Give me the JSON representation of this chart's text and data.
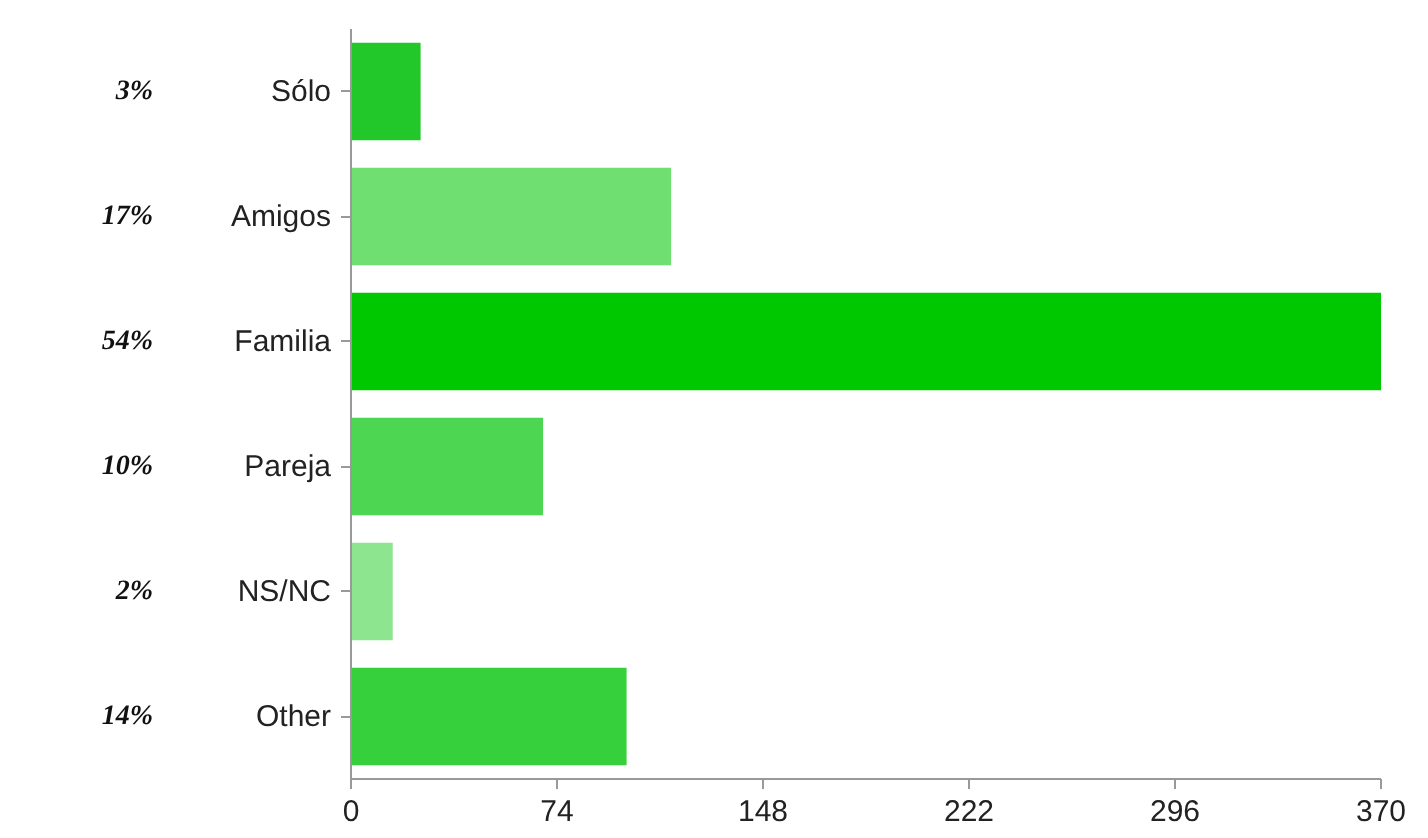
{
  "chart_data": {
    "type": "bar",
    "orientation": "horizontal",
    "categories": [
      "Sólo",
      "Amigos",
      "Familia",
      "Pareja",
      "NS/NC",
      "Other"
    ],
    "values": [
      25,
      115,
      370,
      69,
      15,
      99
    ],
    "colors": [
      "#22c82a",
      "#6fdf72",
      "#00c800",
      "#4cd652",
      "#8ee58f",
      "#35d03b"
    ],
    "annotations": [
      "3%",
      "17%",
      "54%",
      "10%",
      "2%",
      "14%"
    ],
    "xlim": [
      0,
      370
    ],
    "xticks": [
      0,
      74,
      148,
      222,
      296,
      370
    ],
    "grid": false
  }
}
